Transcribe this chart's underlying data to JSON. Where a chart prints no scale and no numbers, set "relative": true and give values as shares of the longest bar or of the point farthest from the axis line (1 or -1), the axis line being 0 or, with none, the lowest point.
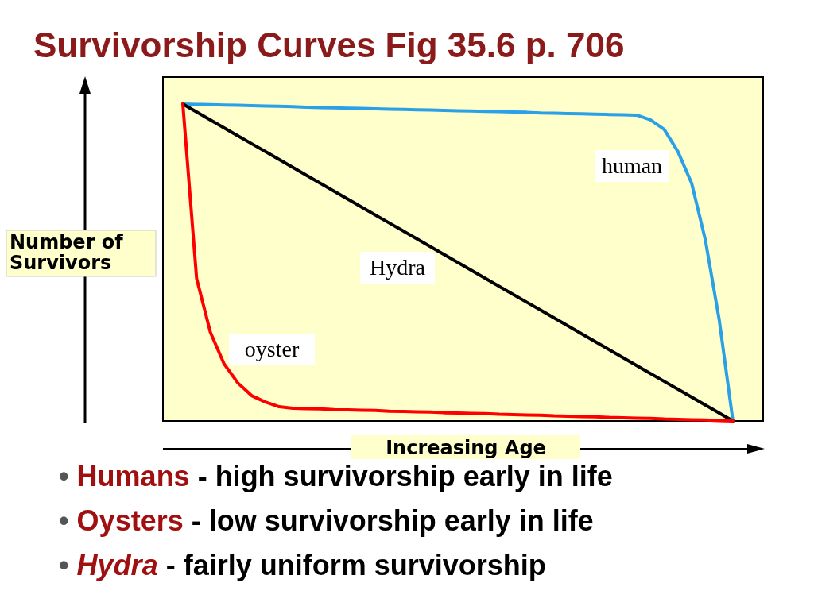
{
  "chart_data": {
    "type": "line",
    "title": "Survivorship Curves Fig 35.6 p. 706",
    "xlabel": "Increasing Age",
    "ylabel": "Number of Survivors",
    "relative": true,
    "grid": false,
    "legend": false,
    "marker": "none",
    "line_style": "solid",
    "categories": [
      null,
      null,
      null,
      null,
      null,
      null,
      null,
      null,
      null,
      null,
      null,
      null,
      null,
      null,
      null,
      null,
      null,
      null,
      null,
      null,
      null,
      null,
      null,
      null,
      null,
      null,
      null,
      null,
      null,
      null,
      null,
      null,
      null,
      null,
      null,
      null,
      null,
      null,
      null,
      null,
      null
    ],
    "series": [
      {
        "name": "human",
        "color": "#2aa0e6",
        "values": [
          1.0,
          0.999,
          0.998,
          0.997,
          0.996,
          0.995,
          0.994,
          0.993,
          0.992,
          0.99,
          0.989,
          0.988,
          0.987,
          0.986,
          0.985,
          0.984,
          0.983,
          0.982,
          0.981,
          0.98,
          0.979,
          0.978,
          0.977,
          0.976,
          0.975,
          0.974,
          0.972,
          0.971,
          0.97,
          0.969,
          0.968,
          0.967,
          0.966,
          0.965,
          0.95,
          0.92,
          0.85,
          0.75,
          0.57,
          0.32,
          0
        ]
      },
      {
        "name": "Hydra",
        "color": "#000000",
        "values": [
          1.0,
          0.975,
          0.95,
          0.925,
          0.9,
          0.875,
          0.85,
          0.825,
          0.8,
          0.775,
          0.75,
          0.725,
          0.7,
          0.675,
          0.65,
          0.625,
          0.6,
          0.575,
          0.55,
          0.525,
          0.5,
          0.475,
          0.45,
          0.425,
          0.4,
          0.375,
          0.35,
          0.325,
          0.3,
          0.275,
          0.25,
          0.225,
          0.2,
          0.175,
          0.15,
          0.125,
          0.1,
          0.075,
          0.05,
          0.025,
          0
        ]
      },
      {
        "name": "oyster",
        "color": "#ff0000",
        "values": [
          1.0,
          0.45,
          0.28,
          0.18,
          0.12,
          0.08,
          0.06,
          0.045,
          0.04,
          0.039,
          0.038,
          0.036,
          0.035,
          0.034,
          0.033,
          0.031,
          0.03,
          0.029,
          0.028,
          0.026,
          0.025,
          0.024,
          0.023,
          0.021,
          0.02,
          0.019,
          0.018,
          0.016,
          0.015,
          0.014,
          0.013,
          0.011,
          0.01,
          0.009,
          0.008,
          0.006,
          0.005,
          0.004,
          0.003,
          0.001,
          0
        ]
      }
    ],
    "annotations": [
      "• Humans - high survivorship early in life",
      "• Oysters - low survivorship early in life",
      "• Hydra - fairly uniform survivorship"
    ]
  }
}
